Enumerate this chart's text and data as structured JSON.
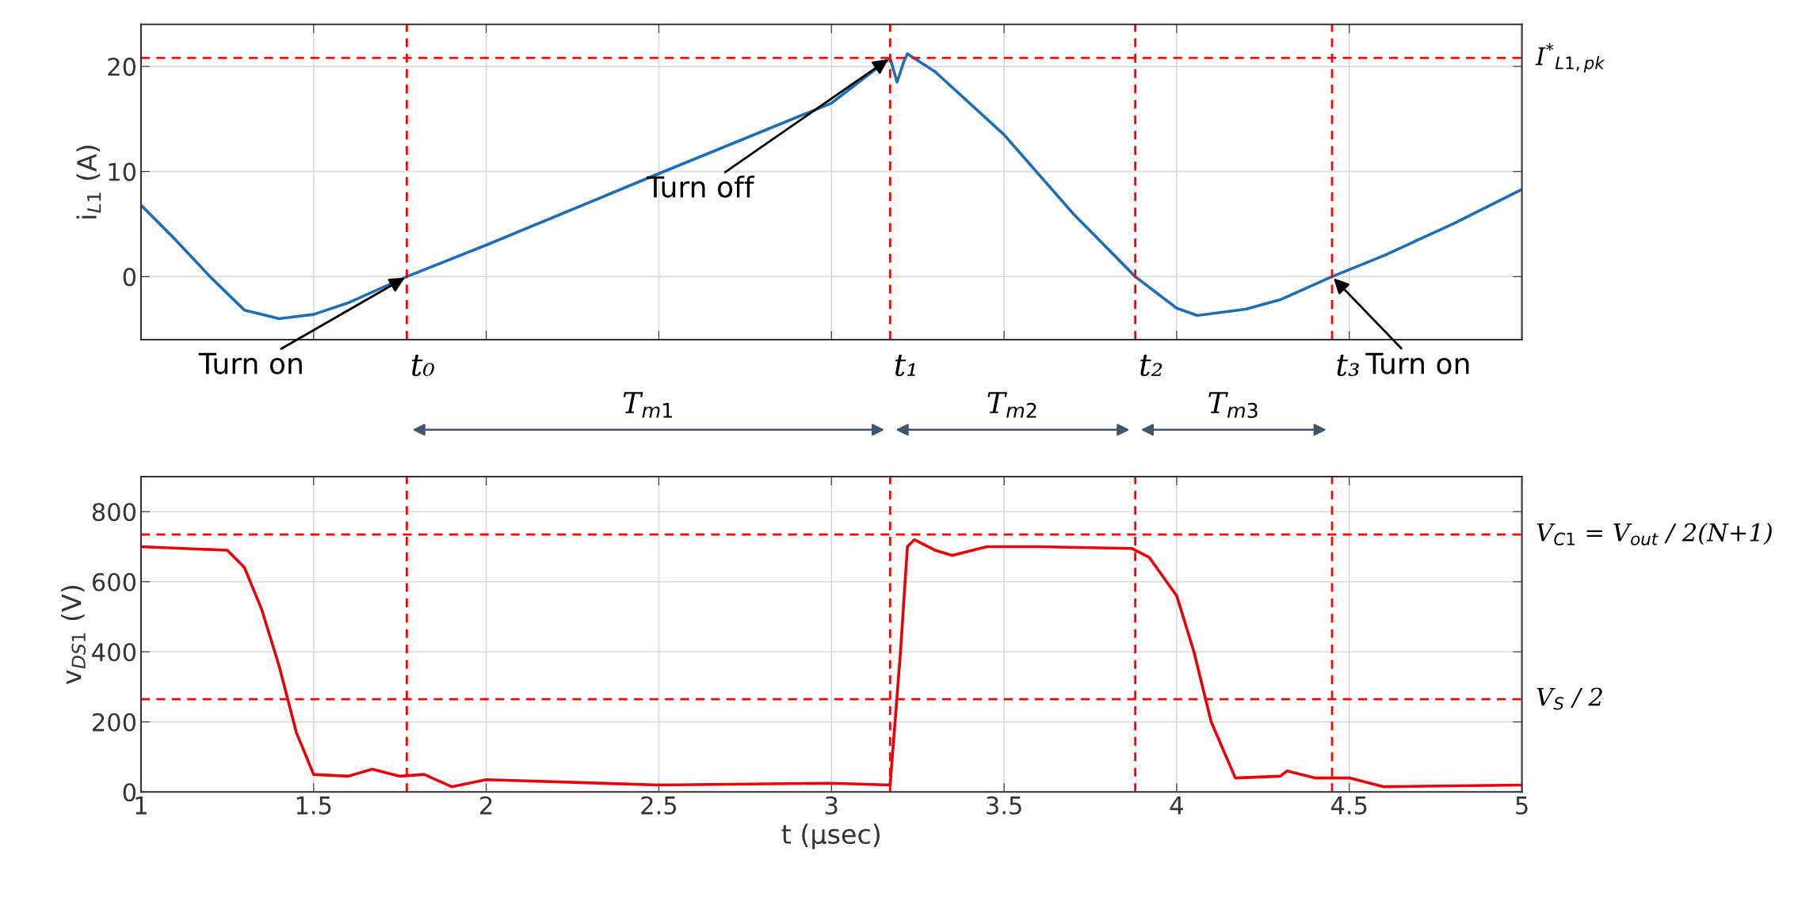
{
  "chart_data": [
    {
      "type": "line",
      "ylabel": "i$_{L1}$ (A)",
      "xlim": [
        1,
        5
      ],
      "ylim": [
        -6,
        24
      ],
      "yticks": [
        0,
        10,
        20
      ],
      "xticks": [
        {
          "value": 1,
          "label": null
        },
        {
          "value": 1.5,
          "label": null
        },
        {
          "value": 2,
          "label": null
        },
        {
          "value": 2.5,
          "label": null
        },
        {
          "value": 3,
          "label": null
        },
        {
          "value": 3.5,
          "label": null
        },
        {
          "value": 4,
          "label": null
        },
        {
          "value": 4.5,
          "label": null
        },
        {
          "value": 5,
          "label": null
        }
      ],
      "tick_labels": "y",
      "grid": true,
      "line_style": "solid",
      "marker": "none",
      "series": [
        {
          "color": "#1f6db3",
          "x": [
            1,
            1.1,
            1.2,
            1.3,
            1.4,
            1.5,
            1.6,
            1.77,
            2,
            2.5,
            3,
            3.17,
            3.19,
            3.21,
            3.22,
            3.3,
            3.5,
            3.7,
            3.88,
            4,
            4.06,
            4.2,
            4.3,
            4.45,
            4.6,
            4.8,
            5
          ],
          "values": [
            6.8,
            3.5,
            0,
            -3.2,
            -4,
            -3.6,
            -2.5,
            0,
            3,
            9.8,
            16.5,
            20.8,
            18.5,
            20.5,
            21.2,
            19.5,
            13.5,
            6,
            0,
            -3,
            -3.7,
            -3.1,
            -2.2,
            0,
            2,
            5,
            8.3
          ]
        }
      ],
      "ref_lines": [
        {
          "axis": "y",
          "value": 20.8,
          "label": "I$^{*}$$_{L1,pk}$",
          "color": "#ff0000",
          "line_style": "dashed"
        },
        {
          "axis": "x",
          "value": 1.77,
          "label": "t₀",
          "color": "#ff0000",
          "line_style": "dashed"
        },
        {
          "axis": "x",
          "value": 3.17,
          "label": "t₁",
          "color": "#ff0000",
          "line_style": "dashed"
        },
        {
          "axis": "x",
          "value": 3.88,
          "label": "t₂",
          "color": "#ff0000",
          "line_style": "dashed"
        },
        {
          "axis": "x",
          "value": 4.45,
          "label": "t₃",
          "color": "#ff0000",
          "line_style": "dashed"
        }
      ],
      "annotations": [
        {
          "text": "Turn on",
          "x": 1.77,
          "y": 0
        },
        {
          "text": "Turn off",
          "x": 3.17,
          "y": 20.8
        },
        {
          "text": "Turn on",
          "x": 4.45,
          "y": 0
        },
        "T$_{m1}$",
        "T$_{m2}$",
        "T$_{m3}$"
      ]
    },
    {
      "type": "line",
      "ylabel": "v$_{DS1}$ (V)",
      "xlabel": "t (μsec)",
      "xlim": [
        1,
        5
      ],
      "ylim": [
        0,
        900
      ],
      "yticks": [
        0,
        200,
        400,
        600,
        800
      ],
      "xticks": [
        1,
        1.5,
        2,
        2.5,
        3,
        3.5,
        4,
        4.5,
        5
      ],
      "grid": true,
      "line_style": "solid",
      "marker": "none",
      "series": [
        {
          "color": "#e8000b",
          "x": [
            1,
            1.25,
            1.3,
            1.35,
            1.4,
            1.45,
            1.5,
            1.6,
            1.67,
            1.75,
            1.82,
            1.9,
            2,
            2.5,
            3,
            3.17,
            3.2,
            3.22,
            3.24,
            3.3,
            3.35,
            3.45,
            3.6,
            3.87,
            3.92,
            4,
            4.05,
            4.1,
            4.17,
            4.3,
            4.32,
            4.4,
            4.5,
            4.6,
            5
          ],
          "values": [
            700,
            690,
            640,
            520,
            360,
            170,
            50,
            45,
            65,
            45,
            50,
            15,
            35,
            20,
            25,
            20,
            400,
            700,
            720,
            690,
            675,
            700,
            700,
            695,
            670,
            560,
            400,
            200,
            40,
            45,
            60,
            40,
            40,
            15,
            20
          ]
        }
      ],
      "ref_lines": [
        {
          "axis": "y",
          "value": 735,
          "label": "V$_{C1}$ = V$_{out}$ / 2(N+1)",
          "color": "#ff0000",
          "line_style": "dashed"
        },
        {
          "axis": "y",
          "value": 265,
          "label": "V$_{S}$ / 2",
          "color": "#ff0000",
          "line_style": "dashed"
        },
        {
          "axis": "x",
          "value": 1.77,
          "color": "#ff0000",
          "line_style": "dashed"
        },
        {
          "axis": "x",
          "value": 3.17,
          "color": "#ff0000",
          "line_style": "dashed"
        },
        {
          "axis": "x",
          "value": 3.88,
          "color": "#ff0000",
          "line_style": "dashed"
        },
        {
          "axis": "x",
          "value": 4.45,
          "color": "#ff0000",
          "line_style": "dashed"
        }
      ]
    }
  ]
}
